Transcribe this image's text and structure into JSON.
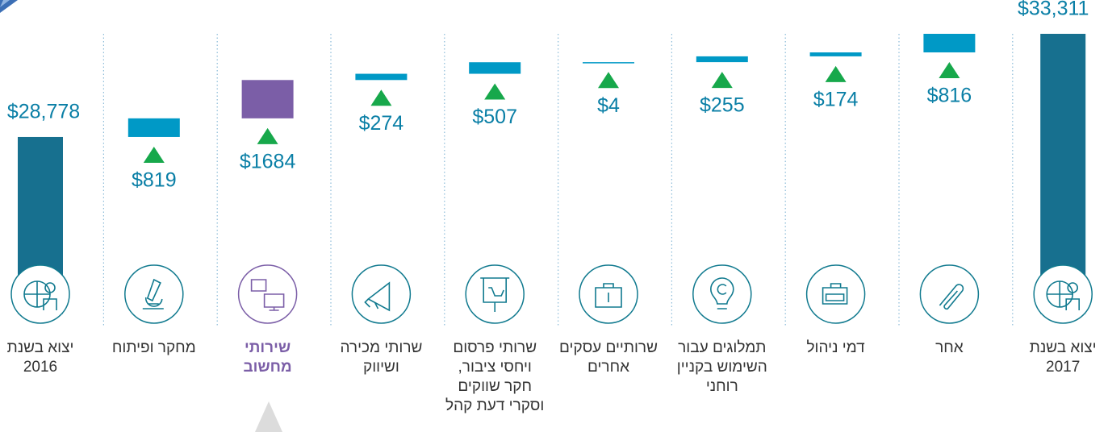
{
  "chart_data": {
    "type": "waterfall",
    "categories": [
      [
        "יצוא בשנת",
        "2016"
      ],
      [
        "מחקר ופיתוח"
      ],
      [
        "שירותי",
        "מחשוב"
      ],
      [
        "שרותי מכירה",
        "ושיווק"
      ],
      [
        "שרותי פרסום",
        "ויחסי ציבור,",
        "חקר שווקים",
        "וסקרי דעת קהל"
      ],
      [
        "שרותיים עסקים",
        "אחרים"
      ],
      [
        "תמלוגים עבור",
        "השימוש בקניין",
        "רוחני"
      ],
      [
        "דמי ניהול"
      ],
      [
        "אחר"
      ],
      [
        "יצוא בשנת",
        "2017"
      ]
    ],
    "values": [
      28778,
      819,
      1684,
      274,
      507,
      4,
      255,
      174,
      816,
      33311
    ],
    "value_labels": [
      "$28,778",
      "$819",
      "$1684",
      "$274",
      "$507",
      "$4",
      "$255",
      "$174",
      "$816",
      "$33,311"
    ],
    "measure": [
      "total",
      "relative",
      "relative",
      "relative",
      "relative",
      "relative",
      "relative",
      "relative",
      "relative",
      "total"
    ],
    "total_color": "#17708f",
    "delta_color": "#0099c6",
    "increase_color": "#17a84b",
    "highlight_index": 2,
    "highlight_color": "#7b5ea7",
    "ylim": [
      21000,
      34000
    ]
  }
}
